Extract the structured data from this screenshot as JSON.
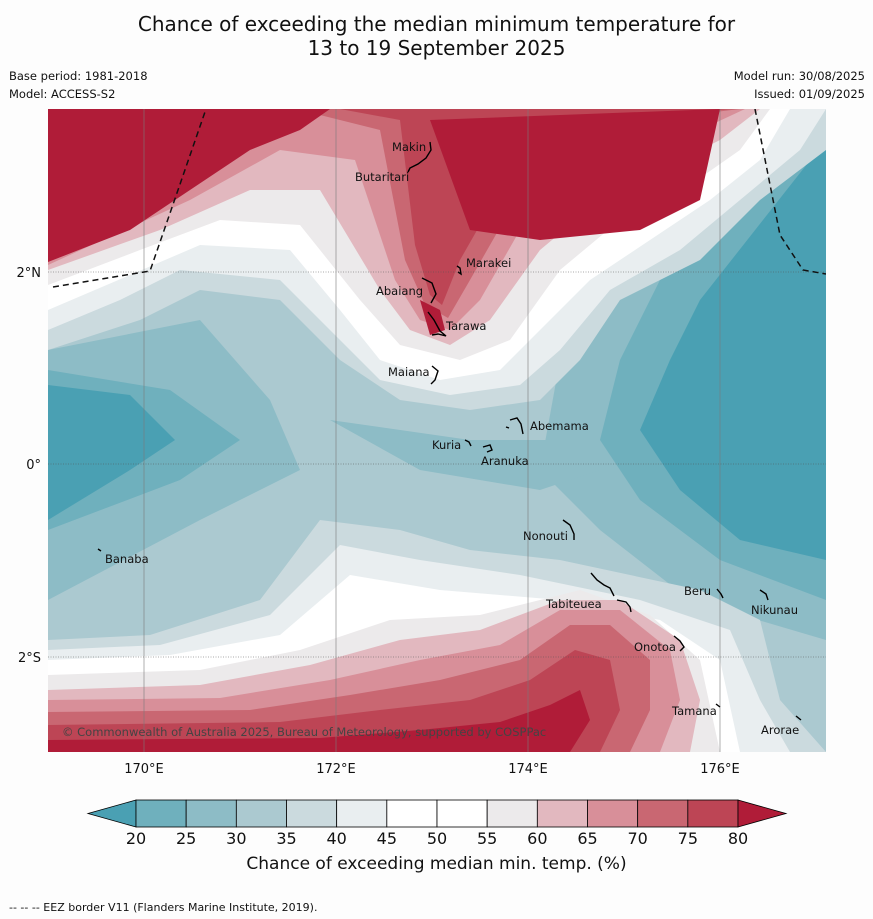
{
  "title_line1": "Chance of exceeding the median minimum temperature for",
  "title_line2": "13 to 19 September 2025",
  "base_period": "Base period: 1981-2018",
  "model": "Model: ACCESS-S2",
  "model_run": "Model run: 30/08/2025",
  "issued": "Issued: 01/09/2025",
  "copyright": "© Commonwealth of Australia 2025, Bureau of Meteorology, supported by COSPPac",
  "footnote": "--  --  -- EEZ border V11 (Flanders Marine Institute, 2019).",
  "colorbar": {
    "title": "Chance of exceeding median min. temp. (%)",
    "ticks": [
      "20",
      "25",
      "30",
      "35",
      "40",
      "45",
      "50",
      "55",
      "60",
      "65",
      "70",
      "75",
      "80"
    ],
    "colors": [
      "#4aa0b3",
      "#6fb0bd",
      "#8dbcc6",
      "#abc9d0",
      "#cbdade",
      "#e9eef0",
      "#ffffff",
      "#ffffff",
      "#eceaeb",
      "#e2b8bf",
      "#d88f99",
      "#c96772",
      "#bd4555",
      "#b01c38"
    ]
  },
  "axes": {
    "lon_labels": [
      "170°E",
      "172°E",
      "174°E",
      "176°E"
    ],
    "lat_labels": [
      "2°N",
      "0°",
      "2°S"
    ]
  },
  "places": [
    {
      "name": "Makin",
      "lon": 173.0,
      "lat": 3.1
    },
    {
      "name": "Butaritari",
      "lon": 172.8,
      "lat": 3.05
    },
    {
      "name": "Marakei",
      "lon": 173.3,
      "lat": 2.0
    },
    {
      "name": "Abaiang",
      "lon": 172.9,
      "lat": 1.85
    },
    {
      "name": "Tarawa",
      "lon": 173.0,
      "lat": 1.4
    },
    {
      "name": "Maiana",
      "lon": 173.0,
      "lat": 0.95
    },
    {
      "name": "Abemama",
      "lon": 173.85,
      "lat": 0.4
    },
    {
      "name": "Kuria",
      "lon": 173.4,
      "lat": 0.23
    },
    {
      "name": "Aranuka",
      "lon": 173.6,
      "lat": 0.17
    },
    {
      "name": "Nonouti",
      "lon": 174.4,
      "lat": -0.65
    },
    {
      "name": "Banaba",
      "lon": 169.55,
      "lat": -0.85
    },
    {
      "name": "Tabiteuea",
      "lon": 174.8,
      "lat": -1.3
    },
    {
      "name": "Beru",
      "lon": 176.0,
      "lat": -1.33
    },
    {
      "name": "Nikunau",
      "lon": 176.45,
      "lat": -1.35
    },
    {
      "name": "Onotoa",
      "lon": 175.55,
      "lat": -1.8
    },
    {
      "name": "Tamana",
      "lon": 175.98,
      "lat": -2.5
    },
    {
      "name": "Arorae",
      "lon": 176.82,
      "lat": -2.65
    }
  ]
}
